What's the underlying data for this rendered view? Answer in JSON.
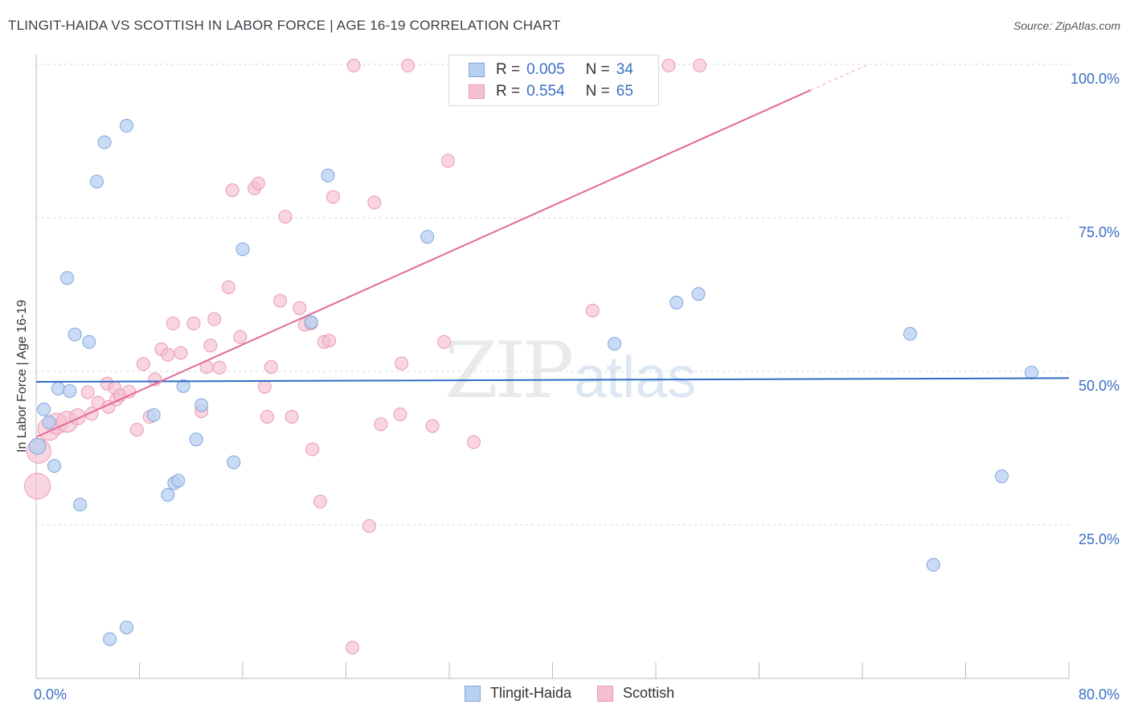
{
  "title": "TLINGIT-HAIDA VS SCOTTISH IN LABOR FORCE | AGE 16-19 CORRELATION CHART",
  "source": "Source: ZipAtlas.com",
  "watermark": {
    "zip": "ZIP",
    "atlas": "atlas"
  },
  "legend_top": {
    "rows": [
      {
        "r_label": "R = ",
        "r_value": "0.005",
        "n_label": "N = ",
        "n_value": "34"
      },
      {
        "r_label": "R = ",
        "r_value": "0.554",
        "n_label": "N = ",
        "n_value": "65"
      }
    ]
  },
  "legend_bottom": {
    "items": [
      "Tlingit-Haida",
      "Scottish"
    ]
  },
  "colors": {
    "blue_fill": "#b8d0f2",
    "blue_stroke": "#7ea6de",
    "blue_line": "#2f6cc6",
    "pink_fill": "#f6bfd0",
    "pink_stroke": "#e99ab3",
    "pink_line": "#e26a93",
    "tick_label": "#3b6fc4",
    "grid": "#d5d5d5"
  },
  "chart_data": {
    "type": "scatter",
    "title": "TLINGIT-HAIDA VS SCOTTISH IN LABOR FORCE | AGE 16-19 CORRELATION CHART",
    "xlabel": "",
    "ylabel": "In Labor Force | Age 16-19",
    "xlim": [
      0,
      80
    ],
    "ylim": [
      0,
      102
    ],
    "x_tick_labels": [
      "0.0%",
      "80.0%"
    ],
    "y_ticks": [
      25,
      50,
      75,
      100
    ],
    "y_tick_labels": [
      "25.0%",
      "50.0%",
      "75.0%",
      "100.0%"
    ],
    "grid": "horizontal dashed",
    "legend_placement": "bottom-center",
    "series": [
      {
        "name": "Tlingit-Haida",
        "color": "#b8d0f2",
        "trend": {
          "x": [
            0,
            80
          ],
          "y": [
            48.3,
            48.9
          ]
        },
        "points": [
          {
            "x": 0.1,
            "y": 37.8,
            "s": 10
          },
          {
            "x": 0.6,
            "y": 43.8,
            "s": 8
          },
          {
            "x": 1.0,
            "y": 41.7,
            "s": 8
          },
          {
            "x": 1.4,
            "y": 34.6,
            "s": 8
          },
          {
            "x": 1.7,
            "y": 47.2,
            "s": 8
          },
          {
            "x": 2.4,
            "y": 65.2,
            "s": 8
          },
          {
            "x": 2.6,
            "y": 46.8,
            "s": 8
          },
          {
            "x": 3.0,
            "y": 56.0,
            "s": 8
          },
          {
            "x": 3.4,
            "y": 28.3,
            "s": 8
          },
          {
            "x": 4.1,
            "y": 54.8,
            "s": 8
          },
          {
            "x": 4.7,
            "y": 80.9,
            "s": 8
          },
          {
            "x": 5.3,
            "y": 87.3,
            "s": 8
          },
          {
            "x": 5.7,
            "y": 6.4,
            "s": 8
          },
          {
            "x": 7.0,
            "y": 90.0,
            "s": 8
          },
          {
            "x": 7.0,
            "y": 8.3,
            "s": 8
          },
          {
            "x": 9.1,
            "y": 42.9,
            "s": 8
          },
          {
            "x": 10.2,
            "y": 29.9,
            "s": 8
          },
          {
            "x": 10.7,
            "y": 31.8,
            "s": 8
          },
          {
            "x": 11.0,
            "y": 32.2,
            "s": 8
          },
          {
            "x": 11.4,
            "y": 47.6,
            "s": 8
          },
          {
            "x": 12.4,
            "y": 38.9,
            "s": 8
          },
          {
            "x": 12.8,
            "y": 44.5,
            "s": 8
          },
          {
            "x": 15.3,
            "y": 35.2,
            "s": 8
          },
          {
            "x": 16.0,
            "y": 69.9,
            "s": 8
          },
          {
            "x": 21.3,
            "y": 58.0,
            "s": 8
          },
          {
            "x": 22.6,
            "y": 81.9,
            "s": 8
          },
          {
            "x": 30.3,
            "y": 71.9,
            "s": 8
          },
          {
            "x": 44.8,
            "y": 54.5,
            "s": 8
          },
          {
            "x": 49.6,
            "y": 61.2,
            "s": 8
          },
          {
            "x": 51.3,
            "y": 62.6,
            "s": 8
          },
          {
            "x": 67.7,
            "y": 56.1,
            "s": 8
          },
          {
            "x": 69.5,
            "y": 18.5,
            "s": 8
          },
          {
            "x": 74.8,
            "y": 32.9,
            "s": 8
          },
          {
            "x": 77.1,
            "y": 49.8,
            "s": 8
          }
        ]
      },
      {
        "name": "Scottish",
        "color": "#f6bfd0",
        "trend": {
          "x": [
            0,
            60
          ],
          "y": [
            39.3,
            95.8
          ],
          "dash_to": {
            "x": 64.5,
            "y": 100
          }
        },
        "points": [
          {
            "x": 0.1,
            "y": 31.3,
            "s": 16
          },
          {
            "x": 0.2,
            "y": 37.0,
            "s": 15
          },
          {
            "x": 1.0,
            "y": 40.6,
            "s": 14
          },
          {
            "x": 1.6,
            "y": 41.5,
            "s": 13
          },
          {
            "x": 2.4,
            "y": 41.8,
            "s": 13
          },
          {
            "x": 3.2,
            "y": 42.6,
            "s": 10
          },
          {
            "x": 4.0,
            "y": 46.6,
            "s": 8
          },
          {
            "x": 4.3,
            "y": 43.1,
            "s": 8
          },
          {
            "x": 4.8,
            "y": 44.9,
            "s": 8
          },
          {
            "x": 5.5,
            "y": 48.0,
            "s": 8
          },
          {
            "x": 5.6,
            "y": 44.2,
            "s": 8
          },
          {
            "x": 6.1,
            "y": 47.3,
            "s": 8
          },
          {
            "x": 6.2,
            "y": 45.4,
            "s": 8
          },
          {
            "x": 6.5,
            "y": 46.1,
            "s": 8
          },
          {
            "x": 7.2,
            "y": 46.7,
            "s": 8
          },
          {
            "x": 7.8,
            "y": 40.5,
            "s": 8
          },
          {
            "x": 8.3,
            "y": 51.2,
            "s": 8
          },
          {
            "x": 8.8,
            "y": 42.6,
            "s": 8
          },
          {
            "x": 9.2,
            "y": 48.7,
            "s": 8
          },
          {
            "x": 9.7,
            "y": 53.6,
            "s": 8
          },
          {
            "x": 10.2,
            "y": 52.7,
            "s": 8
          },
          {
            "x": 10.6,
            "y": 57.8,
            "s": 8
          },
          {
            "x": 11.2,
            "y": 53.0,
            "s": 8
          },
          {
            "x": 12.2,
            "y": 57.8,
            "s": 8
          },
          {
            "x": 12.8,
            "y": 43.5,
            "s": 8
          },
          {
            "x": 13.2,
            "y": 50.7,
            "s": 8
          },
          {
            "x": 13.5,
            "y": 54.2,
            "s": 8
          },
          {
            "x": 13.8,
            "y": 58.5,
            "s": 8
          },
          {
            "x": 14.2,
            "y": 50.6,
            "s": 8
          },
          {
            "x": 14.9,
            "y": 63.7,
            "s": 8
          },
          {
            "x": 15.2,
            "y": 79.5,
            "s": 8
          },
          {
            "x": 15.8,
            "y": 55.6,
            "s": 8
          },
          {
            "x": 16.9,
            "y": 79.8,
            "s": 8
          },
          {
            "x": 17.2,
            "y": 80.6,
            "s": 8
          },
          {
            "x": 17.7,
            "y": 47.5,
            "s": 8
          },
          {
            "x": 17.9,
            "y": 42.6,
            "s": 8
          },
          {
            "x": 18.2,
            "y": 50.7,
            "s": 8
          },
          {
            "x": 18.9,
            "y": 61.5,
            "s": 8
          },
          {
            "x": 19.3,
            "y": 75.2,
            "s": 8
          },
          {
            "x": 19.8,
            "y": 42.6,
            "s": 8
          },
          {
            "x": 20.4,
            "y": 60.3,
            "s": 8
          },
          {
            "x": 20.8,
            "y": 57.6,
            "s": 8
          },
          {
            "x": 21.4,
            "y": 37.3,
            "s": 8
          },
          {
            "x": 22.0,
            "y": 28.8,
            "s": 8
          },
          {
            "x": 22.3,
            "y": 54.8,
            "s": 8
          },
          {
            "x": 22.7,
            "y": 55.0,
            "s": 8
          },
          {
            "x": 23.0,
            "y": 78.4,
            "s": 8
          },
          {
            "x": 24.6,
            "y": 99.8,
            "s": 8
          },
          {
            "x": 24.5,
            "y": 5.0,
            "s": 8
          },
          {
            "x": 25.8,
            "y": 24.8,
            "s": 8
          },
          {
            "x": 26.2,
            "y": 77.5,
            "s": 8
          },
          {
            "x": 26.7,
            "y": 41.4,
            "s": 8
          },
          {
            "x": 28.2,
            "y": 43.0,
            "s": 8
          },
          {
            "x": 28.3,
            "y": 51.3,
            "s": 8
          },
          {
            "x": 28.8,
            "y": 99.8,
            "s": 8
          },
          {
            "x": 30.7,
            "y": 41.1,
            "s": 8
          },
          {
            "x": 31.6,
            "y": 54.8,
            "s": 8
          },
          {
            "x": 31.9,
            "y": 84.3,
            "s": 8
          },
          {
            "x": 33.9,
            "y": 38.5,
            "s": 8
          },
          {
            "x": 41.4,
            "y": 99.5,
            "s": 8
          },
          {
            "x": 43.1,
            "y": 59.9,
            "s": 8
          },
          {
            "x": 49.0,
            "y": 99.8,
            "s": 8
          },
          {
            "x": 51.4,
            "y": 99.8,
            "s": 8
          },
          {
            "x": 37.3,
            "y": 99.8,
            "s": 8
          },
          {
            "x": 21.3,
            "y": 57.8,
            "s": 8
          }
        ]
      }
    ]
  }
}
